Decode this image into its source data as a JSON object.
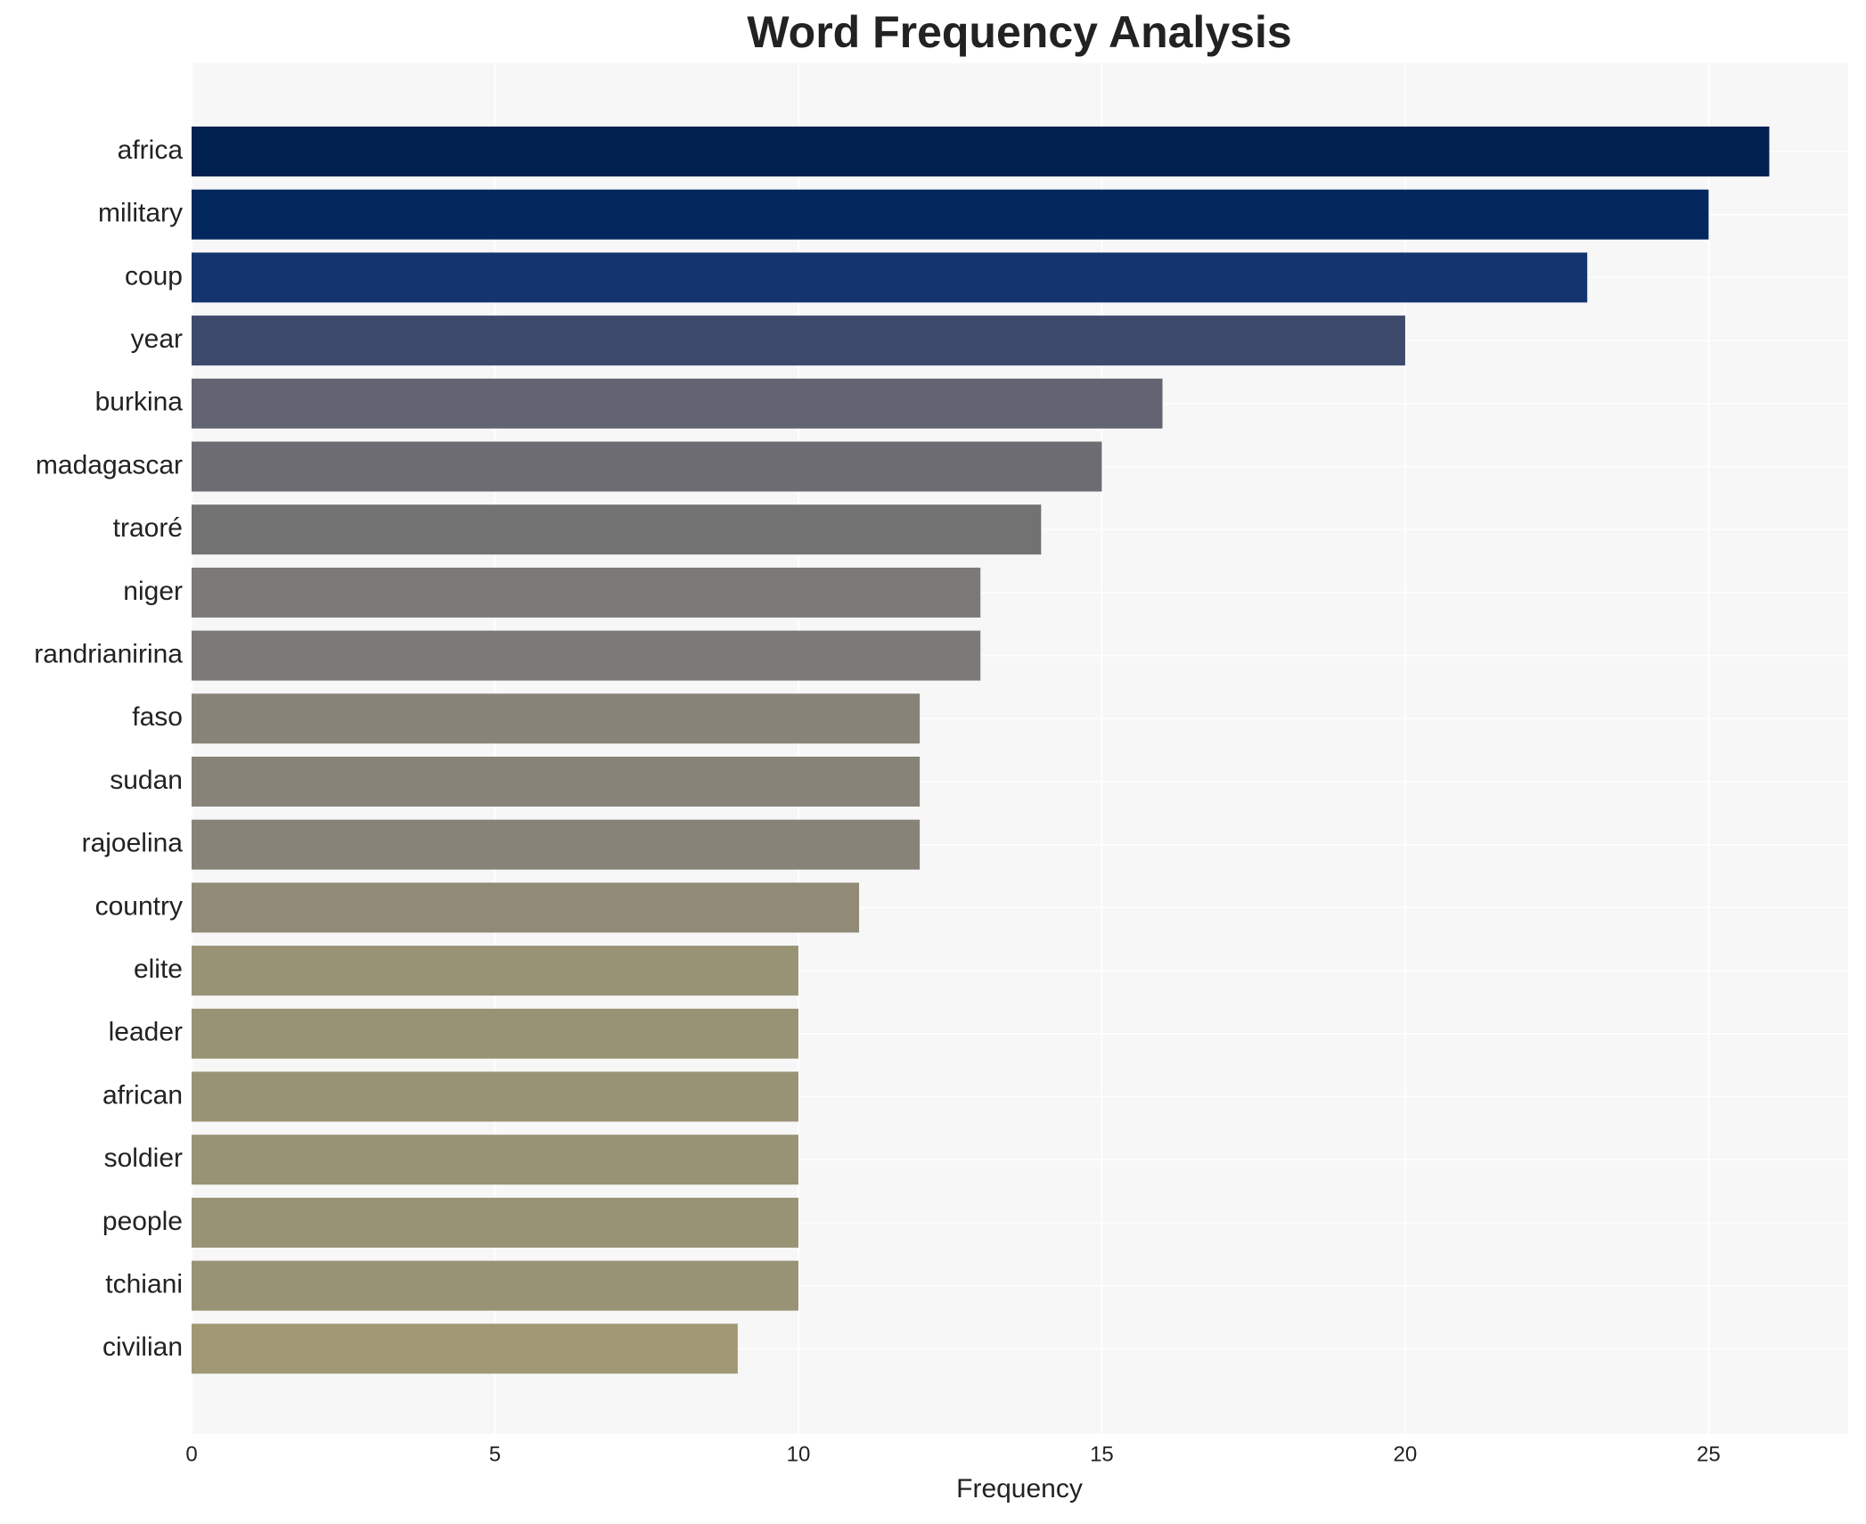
{
  "chart_data": {
    "type": "barh",
    "title": "Word Frequency Analysis",
    "x_label": "Frequency",
    "categories": [
      "africa",
      "military",
      "coup",
      "year",
      "burkina",
      "madagascar",
      "traoré",
      "niger",
      "randrianirina",
      "faso",
      "sudan",
      "rajoelina",
      "country",
      "elite",
      "leader",
      "african",
      "soldier",
      "people",
      "tchiani",
      "civilian"
    ],
    "values": [
      26,
      25,
      23,
      20,
      16,
      15,
      14,
      13,
      13,
      12,
      12,
      12,
      11,
      10,
      10,
      10,
      10,
      10,
      10,
      9
    ],
    "colors": [
      "#012251",
      "#02285e",
      "#14346f",
      "#3e4a6c",
      "#636472",
      "#6c6c72",
      "#727272",
      "#7b7a76",
      "#7b7a76",
      "#878379",
      "#878379",
      "#878379",
      "#918a76",
      "#999375",
      "#999375",
      "#999375",
      "#999375",
      "#999375",
      "#999375",
      "#a09873"
    ],
    "xlim": [
      0,
      27.3
    ],
    "xticks": [
      0,
      5,
      10,
      15,
      20,
      25
    ],
    "grid": true
  }
}
